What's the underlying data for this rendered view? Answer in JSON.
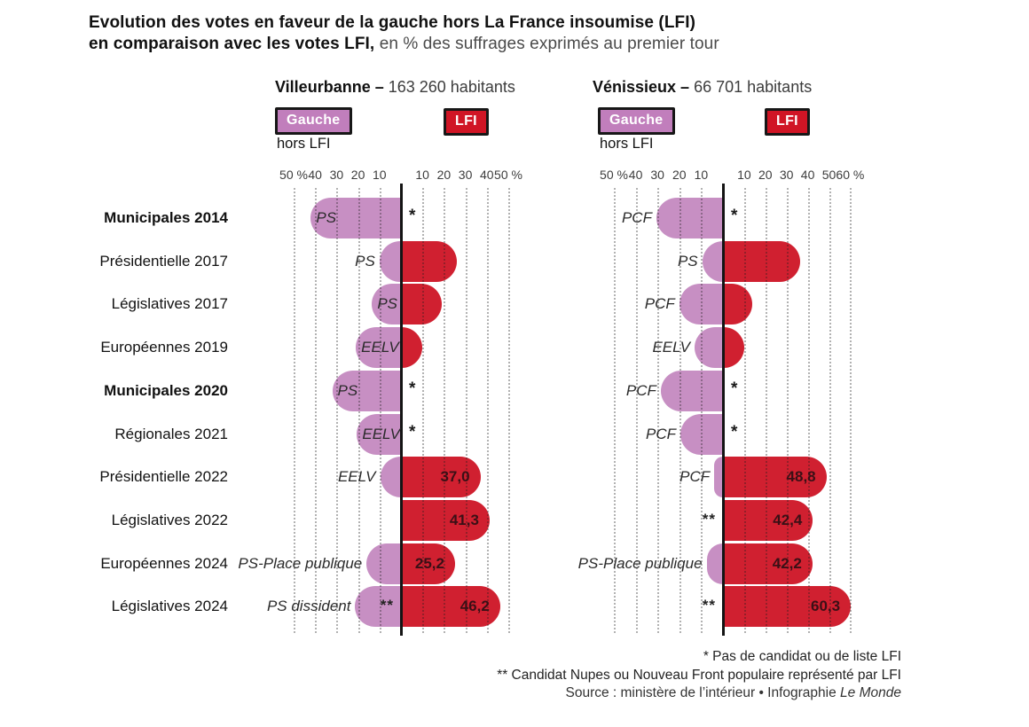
{
  "title": {
    "bold1": "Evolution des votes en faveur de la gauche hors La France insoumise (LFI)",
    "bold2": "en comparaison avec les votes LFI,",
    "rest": " en % des suffrages exprimés au premier tour"
  },
  "legend": {
    "gauche": "Gauche",
    "gauche_sub": "hors LFI",
    "lfi": "LFI"
  },
  "colors": {
    "gauche_bar": "#c78fc3",
    "lfi_bar": "#d02030",
    "badge_gauche": "#c17ebc",
    "badge_lfi": "#d01525",
    "axis": "#141414",
    "value_text": "#3a1016"
  },
  "footnotes": {
    "star": "* Pas de candidat ou de liste LFI",
    "double_star": "** Candidat Nupes ou Nouveau Front populaire représenté par LFI",
    "source_prefix": "Source : ministère de l’intérieur  •  Infographie ",
    "source_italic": "Le Monde"
  },
  "chart_data": [
    {
      "type": "bar",
      "orientation": "diverging-horizontal",
      "city_label": "Villeurbanne –",
      "population_label": "163 260 habitants",
      "left_series": "Gauche hors LFI",
      "right_series": "LFI",
      "unit": "% des suffrages exprimés au premier tour",
      "left_axis": {
        "max": 50,
        "ticks": [
          "50 %",
          "40",
          "30",
          "20",
          "10"
        ]
      },
      "right_axis": {
        "max": 50,
        "ticks": [
          "10",
          "20",
          "30",
          "40",
          "50 %"
        ]
      },
      "rows": [
        {
          "election": "Municipales 2014",
          "bold": true,
          "gauche": {
            "party": "PS",
            "value": 42,
            "label_inside": true
          },
          "lfi": null,
          "star": "*",
          "double_star": null
        },
        {
          "election": "Présidentielle 2017",
          "bold": false,
          "gauche": {
            "party": "PS",
            "value": 10,
            "label_inside": false
          },
          "lfi": {
            "value": 26,
            "label": null
          },
          "star": null,
          "double_star": null
        },
        {
          "election": "Législatives 2017",
          "bold": false,
          "gauche": {
            "party": "PS",
            "value": 13.5,
            "label_inside": true
          },
          "lfi": {
            "value": 19,
            "label": null
          },
          "star": null,
          "double_star": null
        },
        {
          "election": "Européennes 2019",
          "bold": false,
          "gauche": {
            "party": "EELV",
            "value": 21,
            "label_inside": true
          },
          "lfi": {
            "value": 10,
            "label": null
          },
          "star": null,
          "double_star": null
        },
        {
          "election": "Municipales 2020",
          "bold": true,
          "gauche": {
            "party": "PS",
            "value": 32,
            "label_inside": true
          },
          "lfi": null,
          "star": "*",
          "double_star": null
        },
        {
          "election": "Régionales 2021",
          "bold": false,
          "gauche": {
            "party": "EELV",
            "value": 20.5,
            "label_inside": true
          },
          "lfi": null,
          "star": "*",
          "double_star": null
        },
        {
          "election": "Présidentielle 2022",
          "bold": false,
          "gauche": {
            "party": "EELV",
            "value": 9.7,
            "label_inside": false
          },
          "lfi": {
            "value": 37.0,
            "label": "37,0"
          },
          "star": null,
          "double_star": null
        },
        {
          "election": "Législatives 2022",
          "bold": false,
          "gauche": null,
          "lfi": {
            "value": 41.3,
            "label": "41,3"
          },
          "star": null,
          "double_star": null
        },
        {
          "election": "Européennes 2024",
          "bold": false,
          "gauche": {
            "party": "PS-Place publique",
            "value": 16,
            "label_inside": false
          },
          "lfi": {
            "value": 25.2,
            "label": "25,2"
          },
          "star": null,
          "double_star": null
        },
        {
          "election": "Législatives 2024",
          "bold": false,
          "gauche": {
            "party": "PS dissident",
            "value": 21.3,
            "label_inside": false
          },
          "lfi": {
            "value": 46.2,
            "label": "46,2"
          },
          "star": null,
          "double_star": "**"
        }
      ]
    },
    {
      "type": "bar",
      "orientation": "diverging-horizontal",
      "city_label": "Vénissieux –",
      "population_label": "66 701 habitants",
      "left_series": "Gauche hors LFI",
      "right_series": "LFI",
      "unit": "% des suffrages exprimés au premier tour",
      "left_axis": {
        "max": 50,
        "ticks": [
          "50 %",
          "40",
          "30",
          "20",
          "10"
        ]
      },
      "right_axis": {
        "max": 60,
        "ticks": [
          "10",
          "20",
          "30",
          "40",
          "50",
          "60 %"
        ]
      },
      "rows": [
        {
          "election": "Municipales 2014",
          "bold": true,
          "gauche": {
            "party": "PCF",
            "value": 30.5,
            "label_inside": false
          },
          "lfi": null,
          "star": "*",
          "double_star": null
        },
        {
          "election": "Présidentielle 2017",
          "bold": false,
          "gauche": {
            "party": "PS",
            "value": 9.5,
            "label_inside": false
          },
          "lfi": {
            "value": 36.5,
            "label": null
          },
          "star": null,
          "double_star": null
        },
        {
          "election": "Législatives 2017",
          "bold": false,
          "gauche": {
            "party": "PCF",
            "value": 20,
            "label_inside": false
          },
          "lfi": {
            "value": 14,
            "label": null
          },
          "star": null,
          "double_star": null
        },
        {
          "election": "Européennes 2019",
          "bold": false,
          "gauche": {
            "party": "EELV",
            "value": 13,
            "label_inside": false
          },
          "lfi": {
            "value": 10,
            "label": null
          },
          "star": null,
          "double_star": null
        },
        {
          "election": "Municipales 2020",
          "bold": true,
          "gauche": {
            "party": "PCF",
            "value": 28.5,
            "label_inside": false
          },
          "lfi": null,
          "star": "*",
          "double_star": null
        },
        {
          "election": "Régionales 2021",
          "bold": false,
          "gauche": {
            "party": "PCF",
            "value": 19.5,
            "label_inside": false
          },
          "lfi": null,
          "star": "*",
          "double_star": null
        },
        {
          "election": "Présidentielle 2022",
          "bold": false,
          "gauche": {
            "party": "PCF",
            "value": 4,
            "label_inside": false
          },
          "lfi": {
            "value": 48.8,
            "label": "48,8"
          },
          "star": null,
          "double_star": null
        },
        {
          "election": "Législatives 2022",
          "bold": false,
          "gauche": null,
          "lfi": {
            "value": 42.4,
            "label": "42,4"
          },
          "star": null,
          "double_star": "**"
        },
        {
          "election": "Européennes 2024",
          "bold": false,
          "gauche": {
            "party": "PS-Place publique",
            "value": 7.5,
            "label_inside": false
          },
          "lfi": {
            "value": 42.2,
            "label": "42,2"
          },
          "star": null,
          "double_star": null
        },
        {
          "election": "Législatives 2024",
          "bold": false,
          "gauche": null,
          "lfi": {
            "value": 60.3,
            "label": "60,3"
          },
          "star": null,
          "double_star": "**"
        }
      ]
    }
  ]
}
